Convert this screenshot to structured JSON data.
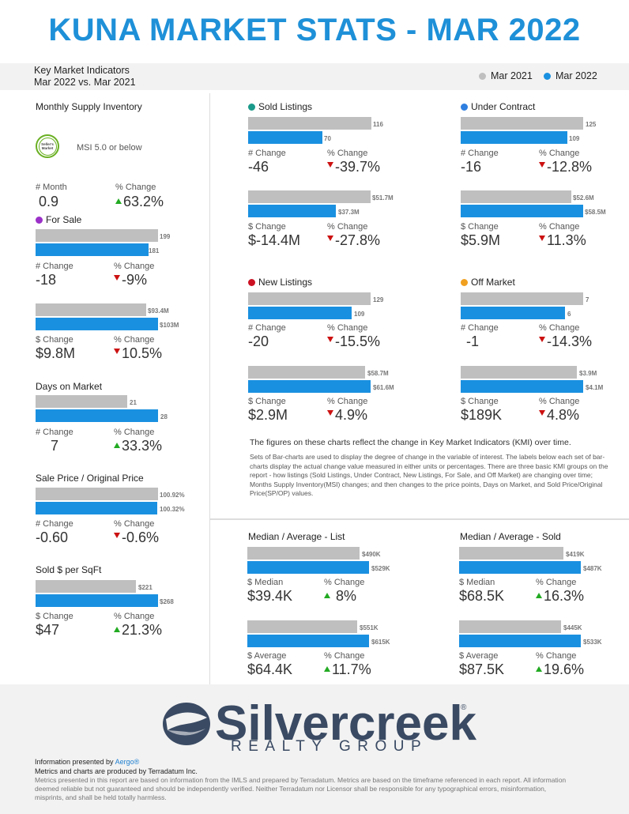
{
  "title": "KUNA MARKET STATS - MAR 2022",
  "kmi": {
    "line1": "Key Market Indicators",
    "line2": "Mar 2022 vs. Mar 2021",
    "legend": [
      {
        "label": "Mar 2021",
        "color": "#bfbfbf"
      },
      {
        "label": "Mar 2022",
        "color": "#1a90e0"
      }
    ]
  },
  "left": {
    "msi": {
      "title": "Monthly Supply Inventory",
      "badge": "Seller's Market",
      "note": "MSI 5.0 or below",
      "m1_label": "# Month",
      "m1_value": "0.9",
      "m2_label": "% Change",
      "m2_value": "63.2%",
      "m2_dir": "up"
    },
    "for_sale": {
      "title": "For Sale",
      "dot_color": "#9b30c8",
      "count": {
        "prev": "199",
        "curr": "181",
        "prev_frac": 0.91,
        "curr_frac": 0.83,
        "m1_label": "# Change",
        "m1_value": "-18",
        "m2_label": "% Change",
        "m2_value": "-9%",
        "m2_dir": "down"
      },
      "volume": {
        "prev": "$93.4M",
        "curr": "$103M",
        "prev_frac": 0.8,
        "curr_frac": 0.88,
        "m1_label": "$ Change",
        "m1_value": "$9.8M",
        "m2_label": "% Change",
        "m2_value": "10.5%",
        "m2_dir": "down"
      }
    },
    "dom": {
      "title": "Days on Market",
      "prev": "21",
      "curr": "28",
      "prev_frac": 0.64,
      "curr_frac": 0.85,
      "m1_label": "# Change",
      "m1_value": "7",
      "m2_label": "% Change",
      "m2_value": "33.3%",
      "m2_dir": "up"
    },
    "sp_op": {
      "title": "Sale Price / Original Price",
      "prev": "100.92%",
      "curr": "100.32%",
      "prev_frac": 0.86,
      "curr_frac": 0.855,
      "m1_label": "# Change",
      "m1_value": "-0.60",
      "m2_label": "% Change",
      "m2_value": "-0.6%",
      "m2_dir": "down"
    },
    "sqft": {
      "title": "Sold $ per SqFt",
      "prev": "$221",
      "curr": "$268",
      "prev_frac": 0.69,
      "curr_frac": 0.84,
      "m1_label": "$ Change",
      "m1_value": "$47",
      "m2_label": "% Change",
      "m2_value": "21.3%",
      "m2_dir": "up"
    }
  },
  "groups": {
    "sold": {
      "title": "Sold Listings",
      "dot_color": "#1a9a8a",
      "count": {
        "prev": "116",
        "curr": "70",
        "prev_frac": 0.9,
        "curr_frac": 0.54,
        "m1_label": "# Change",
        "m1_value": "-46",
        "m2_label": "% Change",
        "m2_value": "-39.7%",
        "m2_dir": "down"
      },
      "volume": {
        "prev": "$51.7M",
        "curr": "$37.3M",
        "prev_frac": 0.89,
        "curr_frac": 0.64,
        "m1_label": "$ Change",
        "m1_value": "$-14.4M",
        "m2_label": "% Change",
        "m2_value": "-27.8%",
        "m2_dir": "down"
      }
    },
    "under_contract": {
      "title": "Under Contract",
      "dot_color": "#2f7fe0",
      "count": {
        "prev": "125",
        "curr": "109",
        "prev_frac": 0.9,
        "curr_frac": 0.78,
        "m1_label": "# Change",
        "m1_value": "-16",
        "m2_label": "% Change",
        "m2_value": "-12.8%",
        "m2_dir": "down"
      },
      "volume": {
        "prev": "$52.6M",
        "curr": "$58.5M",
        "prev_frac": 0.81,
        "curr_frac": 0.9,
        "m1_label": "$ Change",
        "m1_value": "$5.9M",
        "m2_label": "% Change",
        "m2_value": "11.3%",
        "m2_dir": "down"
      }
    },
    "new_listings": {
      "title": "New Listings",
      "dot_color": "#cc1122",
      "count": {
        "prev": "129",
        "curr": "109",
        "prev_frac": 0.9,
        "curr_frac": 0.76,
        "m1_label": "# Change",
        "m1_value": "-20",
        "m2_label": "% Change",
        "m2_value": "-15.5%",
        "m2_dir": "down"
      },
      "volume": {
        "prev": "$58.7M",
        "curr": "$61.6M",
        "prev_frac": 0.86,
        "curr_frac": 0.9,
        "m1_label": "$ Change",
        "m1_value": "$2.9M",
        "m2_label": "% Change",
        "m2_value": "4.9%",
        "m2_dir": "down"
      }
    },
    "off_market": {
      "title": "Off Market",
      "dot_color": "#f0a020",
      "count": {
        "prev": "7",
        "curr": "6",
        "prev_frac": 0.9,
        "curr_frac": 0.77,
        "m1_label": "# Change",
        "m1_value": "-1",
        "m2_label": "% Change",
        "m2_value": "-14.3%",
        "m2_dir": "down"
      },
      "volume": {
        "prev": "$3.9M",
        "curr": "$4.1M",
        "prev_frac": 0.86,
        "curr_frac": 0.9,
        "m1_label": "$ Change",
        "m1_value": "$189K",
        "m2_label": "% Change",
        "m2_value": "4.8%",
        "m2_dir": "down"
      }
    }
  },
  "notes": {
    "main": "The figures on these charts reflect the change in Key Market Indicators (KMI) over time.",
    "sub": "Sets of Bar-charts are used to display the degree of change in the variable of interest. The labels below each set of bar-charts display the actual change value measured in either units or percentages. There are three basic KMI groups on the report - how listings (Sold Listings, Under Contract, New Listings, For Sale, and Off Market) are changing over time; Months Supply Inventory(MSI) changes; and then changes to the price points, Days on Market, and Sold Price/Original Price(SP/OP) values."
  },
  "prices": {
    "list": {
      "title": "Median / Average - List",
      "median": {
        "prev": "$490K",
        "curr": "$529K",
        "prev_frac": 0.83,
        "curr_frac": 0.9,
        "m1_label": "$ Median",
        "m1_value": "$39.4K",
        "m2_label": "% Change",
        "m2_value": "8%",
        "m2_dir": "up"
      },
      "average": {
        "prev": "$551K",
        "curr": "$615K",
        "prev_frac": 0.81,
        "curr_frac": 0.9,
        "m1_label": "$ Average",
        "m1_value": "$64.4K",
        "m2_label": "% Change",
        "m2_value": "11.7%",
        "m2_dir": "up"
      }
    },
    "sold": {
      "title": "Median / Average - Sold",
      "median": {
        "prev": "$419K",
        "curr": "$487K",
        "prev_frac": 0.78,
        "curr_frac": 0.9,
        "m1_label": "$ Median",
        "m1_value": "$68.5K",
        "m2_label": "% Change",
        "m2_value": "16.3%",
        "m2_dir": "up"
      },
      "average": {
        "prev": "$445K",
        "curr": "$533K",
        "prev_frac": 0.76,
        "curr_frac": 0.9,
        "m1_label": "$ Average",
        "m1_value": "$87.5K",
        "m2_label": "% Change",
        "m2_value": "19.6%",
        "m2_dir": "up"
      }
    }
  },
  "footer": {
    "logo_word": "Silvercreek",
    "logo_reg": "®",
    "logo_sub": "REALTY GROUP",
    "presented_prefix": "Information presented by",
    "presented_name": "Aergo®",
    "produced": "Metrics and charts are produced by Terradatum Inc.",
    "disclaimer": "Metrics presented in this report are based on information from the IMLS and prepared by Terradatum. Metrics are based on the timeframe referenced in each report. All information deemed reliable but not guaranteed and should be independently verified. Neither Terradatum nor Licensor shall be responsible for any typographical errors, misinformation, misprints, and shall be held totally harmless."
  },
  "chart_data": [
    {
      "type": "bar",
      "title": "For Sale",
      "categories": [
        "Mar 2021",
        "Mar 2022"
      ],
      "series": [
        {
          "name": "Count",
          "values": [
            199,
            181
          ]
        },
        {
          "name": "Volume ($M)",
          "values": [
            93.4,
            103
          ]
        }
      ]
    },
    {
      "type": "bar",
      "title": "Days on Market",
      "categories": [
        "Mar 2021",
        "Mar 2022"
      ],
      "values": [
        21,
        28
      ]
    },
    {
      "type": "bar",
      "title": "Sale Price / Original Price",
      "categories": [
        "Mar 2021",
        "Mar 2022"
      ],
      "values": [
        100.92,
        100.32
      ]
    },
    {
      "type": "bar",
      "title": "Sold $ per SqFt",
      "categories": [
        "Mar 2021",
        "Mar 2022"
      ],
      "values": [
        221,
        268
      ]
    },
    {
      "type": "bar",
      "title": "Sold Listings",
      "categories": [
        "Mar 2021",
        "Mar 2022"
      ],
      "series": [
        {
          "name": "Count",
          "values": [
            116,
            70
          ]
        },
        {
          "name": "Volume ($M)",
          "values": [
            51.7,
            37.3
          ]
        }
      ]
    },
    {
      "type": "bar",
      "title": "Under Contract",
      "categories": [
        "Mar 2021",
        "Mar 2022"
      ],
      "series": [
        {
          "name": "Count",
          "values": [
            125,
            109
          ]
        },
        {
          "name": "Volume ($M)",
          "values": [
            52.6,
            58.5
          ]
        }
      ]
    },
    {
      "type": "bar",
      "title": "New Listings",
      "categories": [
        "Mar 2021",
        "Mar 2022"
      ],
      "series": [
        {
          "name": "Count",
          "values": [
            129,
            109
          ]
        },
        {
          "name": "Volume ($M)",
          "values": [
            58.7,
            61.6
          ]
        }
      ]
    },
    {
      "type": "bar",
      "title": "Off Market",
      "categories": [
        "Mar 2021",
        "Mar 2022"
      ],
      "series": [
        {
          "name": "Count",
          "values": [
            7,
            6
          ]
        },
        {
          "name": "Volume ($M)",
          "values": [
            3.9,
            4.1
          ]
        }
      ]
    },
    {
      "type": "bar",
      "title": "Median / Average - List",
      "categories": [
        "Mar 2021",
        "Mar 2022"
      ],
      "series": [
        {
          "name": "Median ($K)",
          "values": [
            490,
            529
          ]
        },
        {
          "name": "Average ($K)",
          "values": [
            551,
            615
          ]
        }
      ]
    },
    {
      "type": "bar",
      "title": "Median / Average - Sold",
      "categories": [
        "Mar 2021",
        "Mar 2022"
      ],
      "series": [
        {
          "name": "Median ($K)",
          "values": [
            419,
            487
          ]
        },
        {
          "name": "Average ($K)",
          "values": [
            445,
            533
          ]
        }
      ]
    }
  ]
}
